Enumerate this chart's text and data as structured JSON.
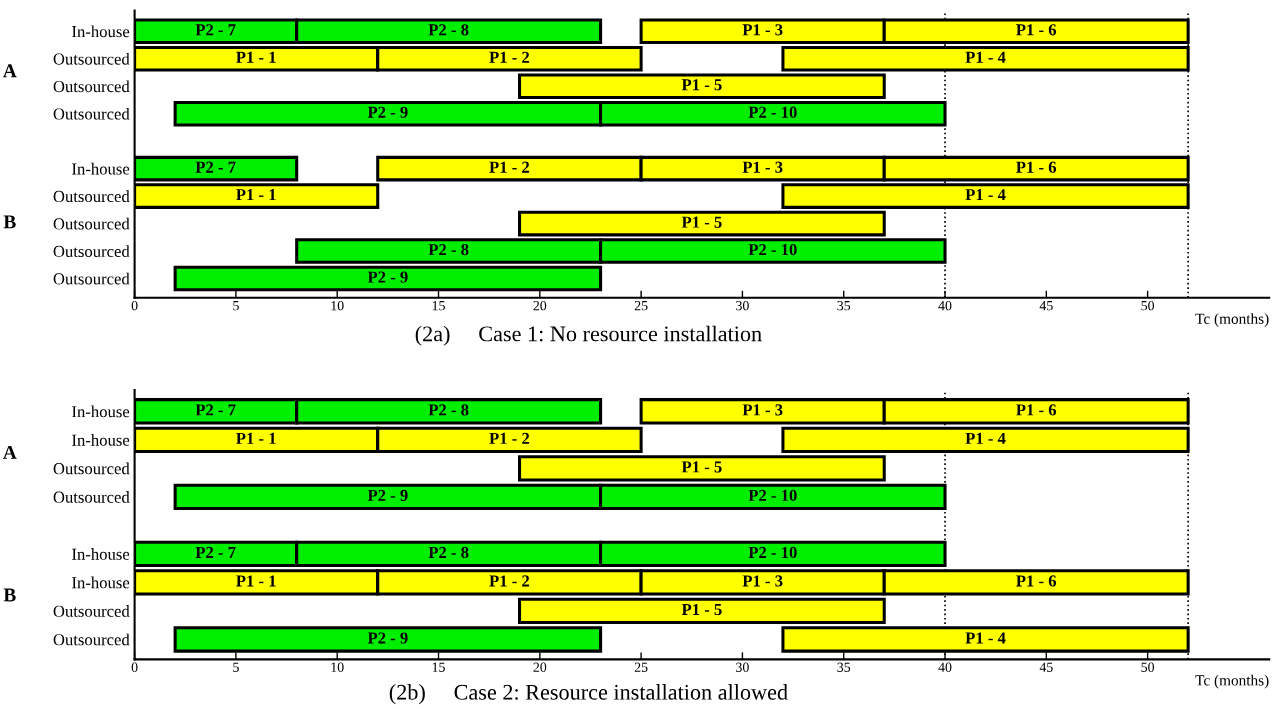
{
  "chart_data": [
    {
      "type": "bar",
      "orientation": "horizontal",
      "title": "(2a)     Case 1: No resource installation",
      "xlabel": "Tc (months)",
      "categories": [
        "In-house",
        "Outsourced",
        "Outsourced",
        "Outsourced",
        null,
        "In-house",
        "Outsourced",
        "Outsourced",
        "Outsourced",
        "Outsourced"
      ],
      "series": [
        {
          "base": [
            0,
            0,
            19,
            2,
            null,
            0,
            0,
            19,
            8,
            2
          ],
          "values": [
            8,
            12,
            18,
            21,
            null,
            8,
            12,
            18,
            15,
            21
          ],
          "colors": [
            "#00ee00",
            "#ffff00",
            "#ffff00",
            "#00ee00",
            null,
            "#00ee00",
            "#ffff00",
            "#ffff00",
            "#00ee00",
            "#00ee00"
          ],
          "value_labels": [
            "P2 - 7",
            "P1 - 1",
            "P1 - 5",
            "P2 - 9",
            null,
            "P2 - 7",
            "P1 - 1",
            "P1 - 5",
            "P2 - 8",
            "P2 - 9"
          ]
        },
        {
          "base": [
            8,
            12,
            null,
            23,
            null,
            12,
            32,
            null,
            23,
            null
          ],
          "values": [
            15,
            13,
            null,
            17,
            null,
            13,
            20,
            null,
            17,
            null
          ],
          "colors": [
            "#00ee00",
            "#ffff00",
            null,
            "#00ee00",
            null,
            "#ffff00",
            "#ffff00",
            null,
            "#00ee00",
            null
          ],
          "value_labels": [
            "P2 - 8",
            "P1 - 2",
            null,
            "P2 - 10",
            null,
            "P1 - 2",
            "P1 - 4",
            null,
            "P2 - 10",
            null
          ]
        },
        {
          "base": [
            25,
            32,
            null,
            null,
            null,
            25,
            null,
            null,
            null,
            null
          ],
          "values": [
            12,
            20,
            null,
            null,
            null,
            12,
            null,
            null,
            null,
            null
          ],
          "colors": [
            "#ffff00",
            "#ffff00",
            null,
            null,
            null,
            "#ffff00",
            null,
            null,
            null,
            null
          ],
          "value_labels": [
            "P1 - 3",
            "P1 - 4",
            null,
            null,
            null,
            "P1 - 3",
            null,
            null,
            null,
            null
          ]
        },
        {
          "base": [
            37,
            null,
            null,
            null,
            null,
            37,
            null,
            null,
            null,
            null
          ],
          "values": [
            15,
            null,
            null,
            null,
            null,
            15,
            null,
            null,
            null,
            null
          ],
          "colors": [
            "#ffff00",
            null,
            null,
            null,
            null,
            "#ffff00",
            null,
            null,
            null,
            null
          ],
          "value_labels": [
            "P1 - 6",
            null,
            null,
            null,
            null,
            "P1 - 6",
            null,
            null,
            null,
            null
          ]
        }
      ],
      "xlim": [
        0,
        56
      ],
      "xticks": [
        0,
        5,
        10,
        15,
        20,
        25,
        30,
        35,
        40,
        45,
        50
      ],
      "ref_lines": [
        {
          "axis": "x",
          "value": 40,
          "line_style": "dotted"
        },
        {
          "axis": "x",
          "value": 52,
          "line_style": "dotted"
        }
      ],
      "annotations": [
        "A",
        "B"
      ],
      "grid": false
    },
    {
      "type": "bar",
      "orientation": "horizontal",
      "title": "(2b)     Case 2: Resource installation allowed",
      "xlabel": "Tc (months)",
      "categories": [
        "In-house",
        "In-house",
        "Outsourced",
        "Outsourced",
        null,
        "In-house",
        "In-house",
        "Outsourced",
        "Outsourced"
      ],
      "series": [
        {
          "base": [
            0,
            0,
            19,
            2,
            null,
            0,
            0,
            19,
            2
          ],
          "values": [
            8,
            12,
            18,
            21,
            null,
            8,
            12,
            18,
            21
          ],
          "colors": [
            "#00ee00",
            "#ffff00",
            "#ffff00",
            "#00ee00",
            null,
            "#00ee00",
            "#ffff00",
            "#ffff00",
            "#00ee00"
          ],
          "value_labels": [
            "P2 - 7",
            "P1 - 1",
            "P1 - 5",
            "P2 - 9",
            null,
            "P2 - 7",
            "P1 - 1",
            "P1 - 5",
            "P2 - 9"
          ]
        },
        {
          "base": [
            8,
            12,
            null,
            23,
            null,
            8,
            12,
            null,
            32
          ],
          "values": [
            15,
            13,
            null,
            17,
            null,
            15,
            13,
            null,
            20
          ],
          "colors": [
            "#00ee00",
            "#ffff00",
            null,
            "#00ee00",
            null,
            "#00ee00",
            "#ffff00",
            null,
            "#ffff00"
          ],
          "value_labels": [
            "P2 - 8",
            "P1 - 2",
            null,
            "P2 - 10",
            null,
            "P2 - 8",
            "P1 - 2",
            null,
            "P1 - 4"
          ]
        },
        {
          "base": [
            25,
            32,
            null,
            null,
            null,
            23,
            25,
            null,
            null
          ],
          "values": [
            12,
            20,
            null,
            null,
            null,
            17,
            12,
            null,
            null
          ],
          "colors": [
            "#ffff00",
            "#ffff00",
            null,
            null,
            null,
            "#00ee00",
            "#ffff00",
            null,
            null
          ],
          "value_labels": [
            "P1 - 3",
            "P1 - 4",
            null,
            null,
            null,
            "P2 - 10",
            "P1 - 3",
            null,
            null
          ]
        },
        {
          "base": [
            37,
            null,
            null,
            null,
            null,
            null,
            37,
            null,
            null
          ],
          "values": [
            15,
            null,
            null,
            null,
            null,
            null,
            15,
            null,
            null
          ],
          "colors": [
            "#ffff00",
            null,
            null,
            null,
            null,
            null,
            "#ffff00",
            null,
            null
          ],
          "value_labels": [
            "P1 - 6",
            null,
            null,
            null,
            null,
            null,
            "P1 - 6",
            null,
            null
          ]
        }
      ],
      "xlim": [
        0,
        56
      ],
      "xticks": [
        0,
        5,
        10,
        15,
        20,
        25,
        30,
        35,
        40,
        45,
        50
      ],
      "ref_lines": [
        {
          "axis": "x",
          "value": 40,
          "line_style": "dotted"
        },
        {
          "axis": "x",
          "value": 52,
          "line_style": "dotted"
        }
      ],
      "annotations": [
        "A",
        "B"
      ],
      "grid": false
    }
  ]
}
